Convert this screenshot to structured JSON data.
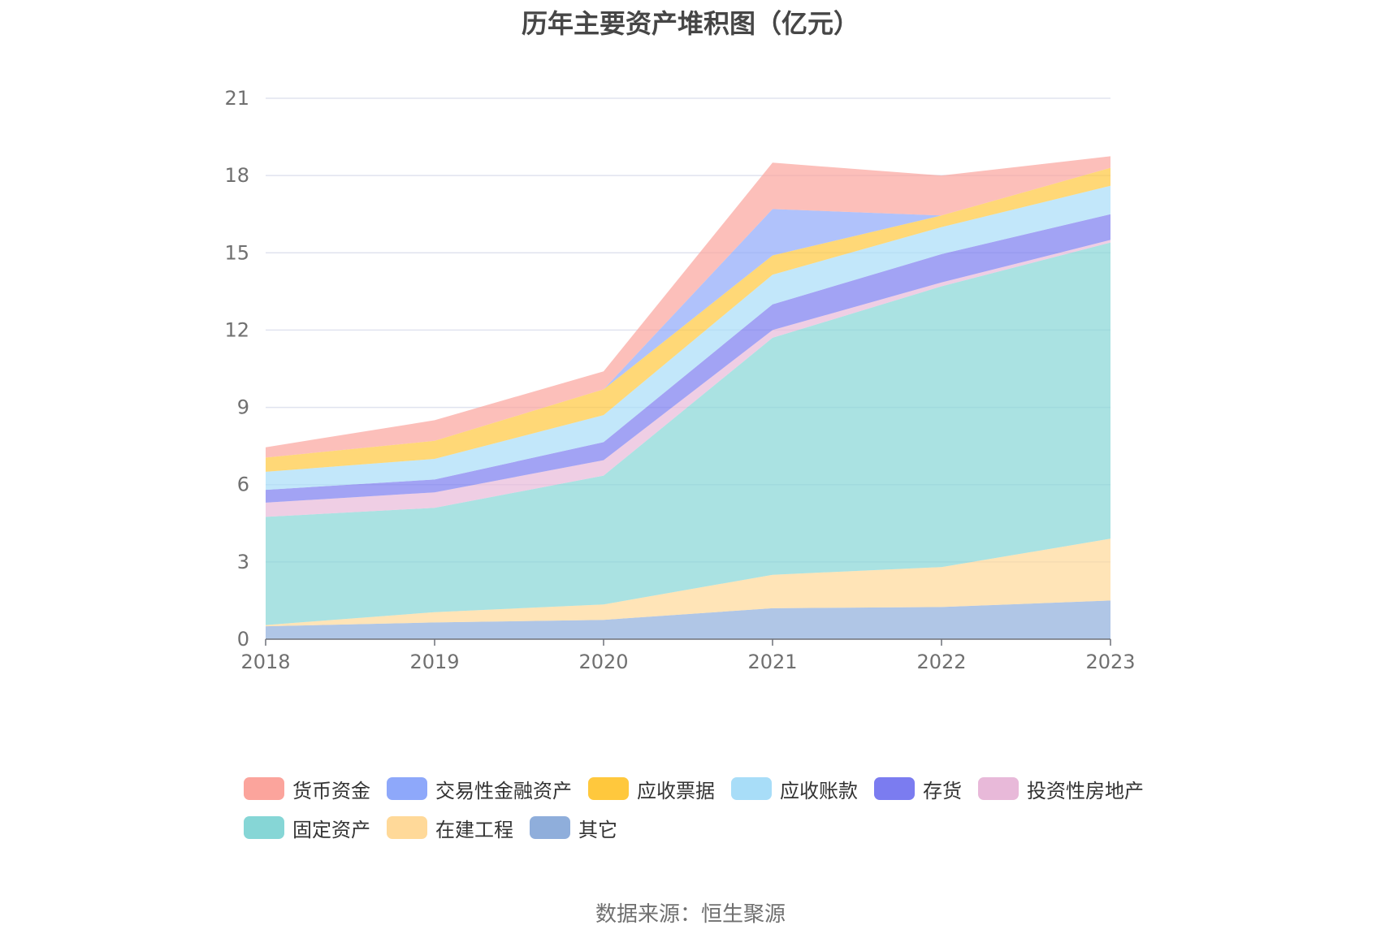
{
  "chart_data": {
    "type": "area",
    "stacked": true,
    "title": "历年主要资产堆积图（亿元）",
    "x": [
      "2018",
      "2019",
      "2020",
      "2021",
      "2022",
      "2023"
    ],
    "ylim": [
      0,
      21
    ],
    "yticks": [
      "0",
      "3",
      "6",
      "9",
      "12",
      "15",
      "18",
      "21"
    ],
    "grid": true,
    "legend_position": "bottom",
    "series": [
      {
        "name": "其它",
        "color": "#8FAEDB",
        "values": [
          0.5,
          0.65,
          0.75,
          1.2,
          1.25,
          1.5
        ]
      },
      {
        "name": "在建工程",
        "color": "#FFD999",
        "values": [
          0.05,
          0.4,
          0.6,
          1.3,
          1.55,
          2.4
        ]
      },
      {
        "name": "固定资产",
        "color": "#86D6D6",
        "values": [
          4.2,
          4.05,
          5.0,
          9.2,
          10.9,
          11.5
        ]
      },
      {
        "name": "投资性房地产",
        "color": "#E8B9D9",
        "values": [
          0.55,
          0.6,
          0.6,
          0.3,
          0.15,
          0.1
        ]
      },
      {
        "name": "存货",
        "color": "#7B7CF0",
        "values": [
          0.5,
          0.5,
          0.7,
          1.0,
          1.1,
          1.0
        ]
      },
      {
        "name": "应收账款",
        "color": "#A8DDF8",
        "values": [
          0.7,
          0.8,
          1.05,
          1.15,
          1.05,
          1.1
        ]
      },
      {
        "name": "应收票据",
        "color": "#FFC83D",
        "values": [
          0.55,
          0.7,
          1.0,
          0.75,
          0.45,
          0.7
        ]
      },
      {
        "name": "交易性金融资产",
        "color": "#8EA8FA",
        "values": [
          0,
          0,
          0,
          1.8,
          0,
          0
        ]
      },
      {
        "name": "货币资金",
        "color": "#FBA49C",
        "values": [
          0.4,
          0.8,
          0.7,
          1.8,
          1.55,
          0.45
        ]
      }
    ]
  },
  "legend": {
    "items": [
      {
        "label": "货币资金",
        "color": "#FBA49C"
      },
      {
        "label": "交易性金融资产",
        "color": "#8EA8FA"
      },
      {
        "label": "应收票据",
        "color": "#FFC83D"
      },
      {
        "label": "应收账款",
        "color": "#A8DDF8"
      },
      {
        "label": "存货",
        "color": "#7B7CF0"
      },
      {
        "label": "投资性房地产",
        "color": "#E8B9D9"
      },
      {
        "label": "固定资产",
        "color": "#86D6D6"
      },
      {
        "label": "在建工程",
        "color": "#FFD999"
      },
      {
        "label": "其它",
        "color": "#8FAEDB"
      }
    ]
  },
  "source": "数据来源：恒生聚源"
}
